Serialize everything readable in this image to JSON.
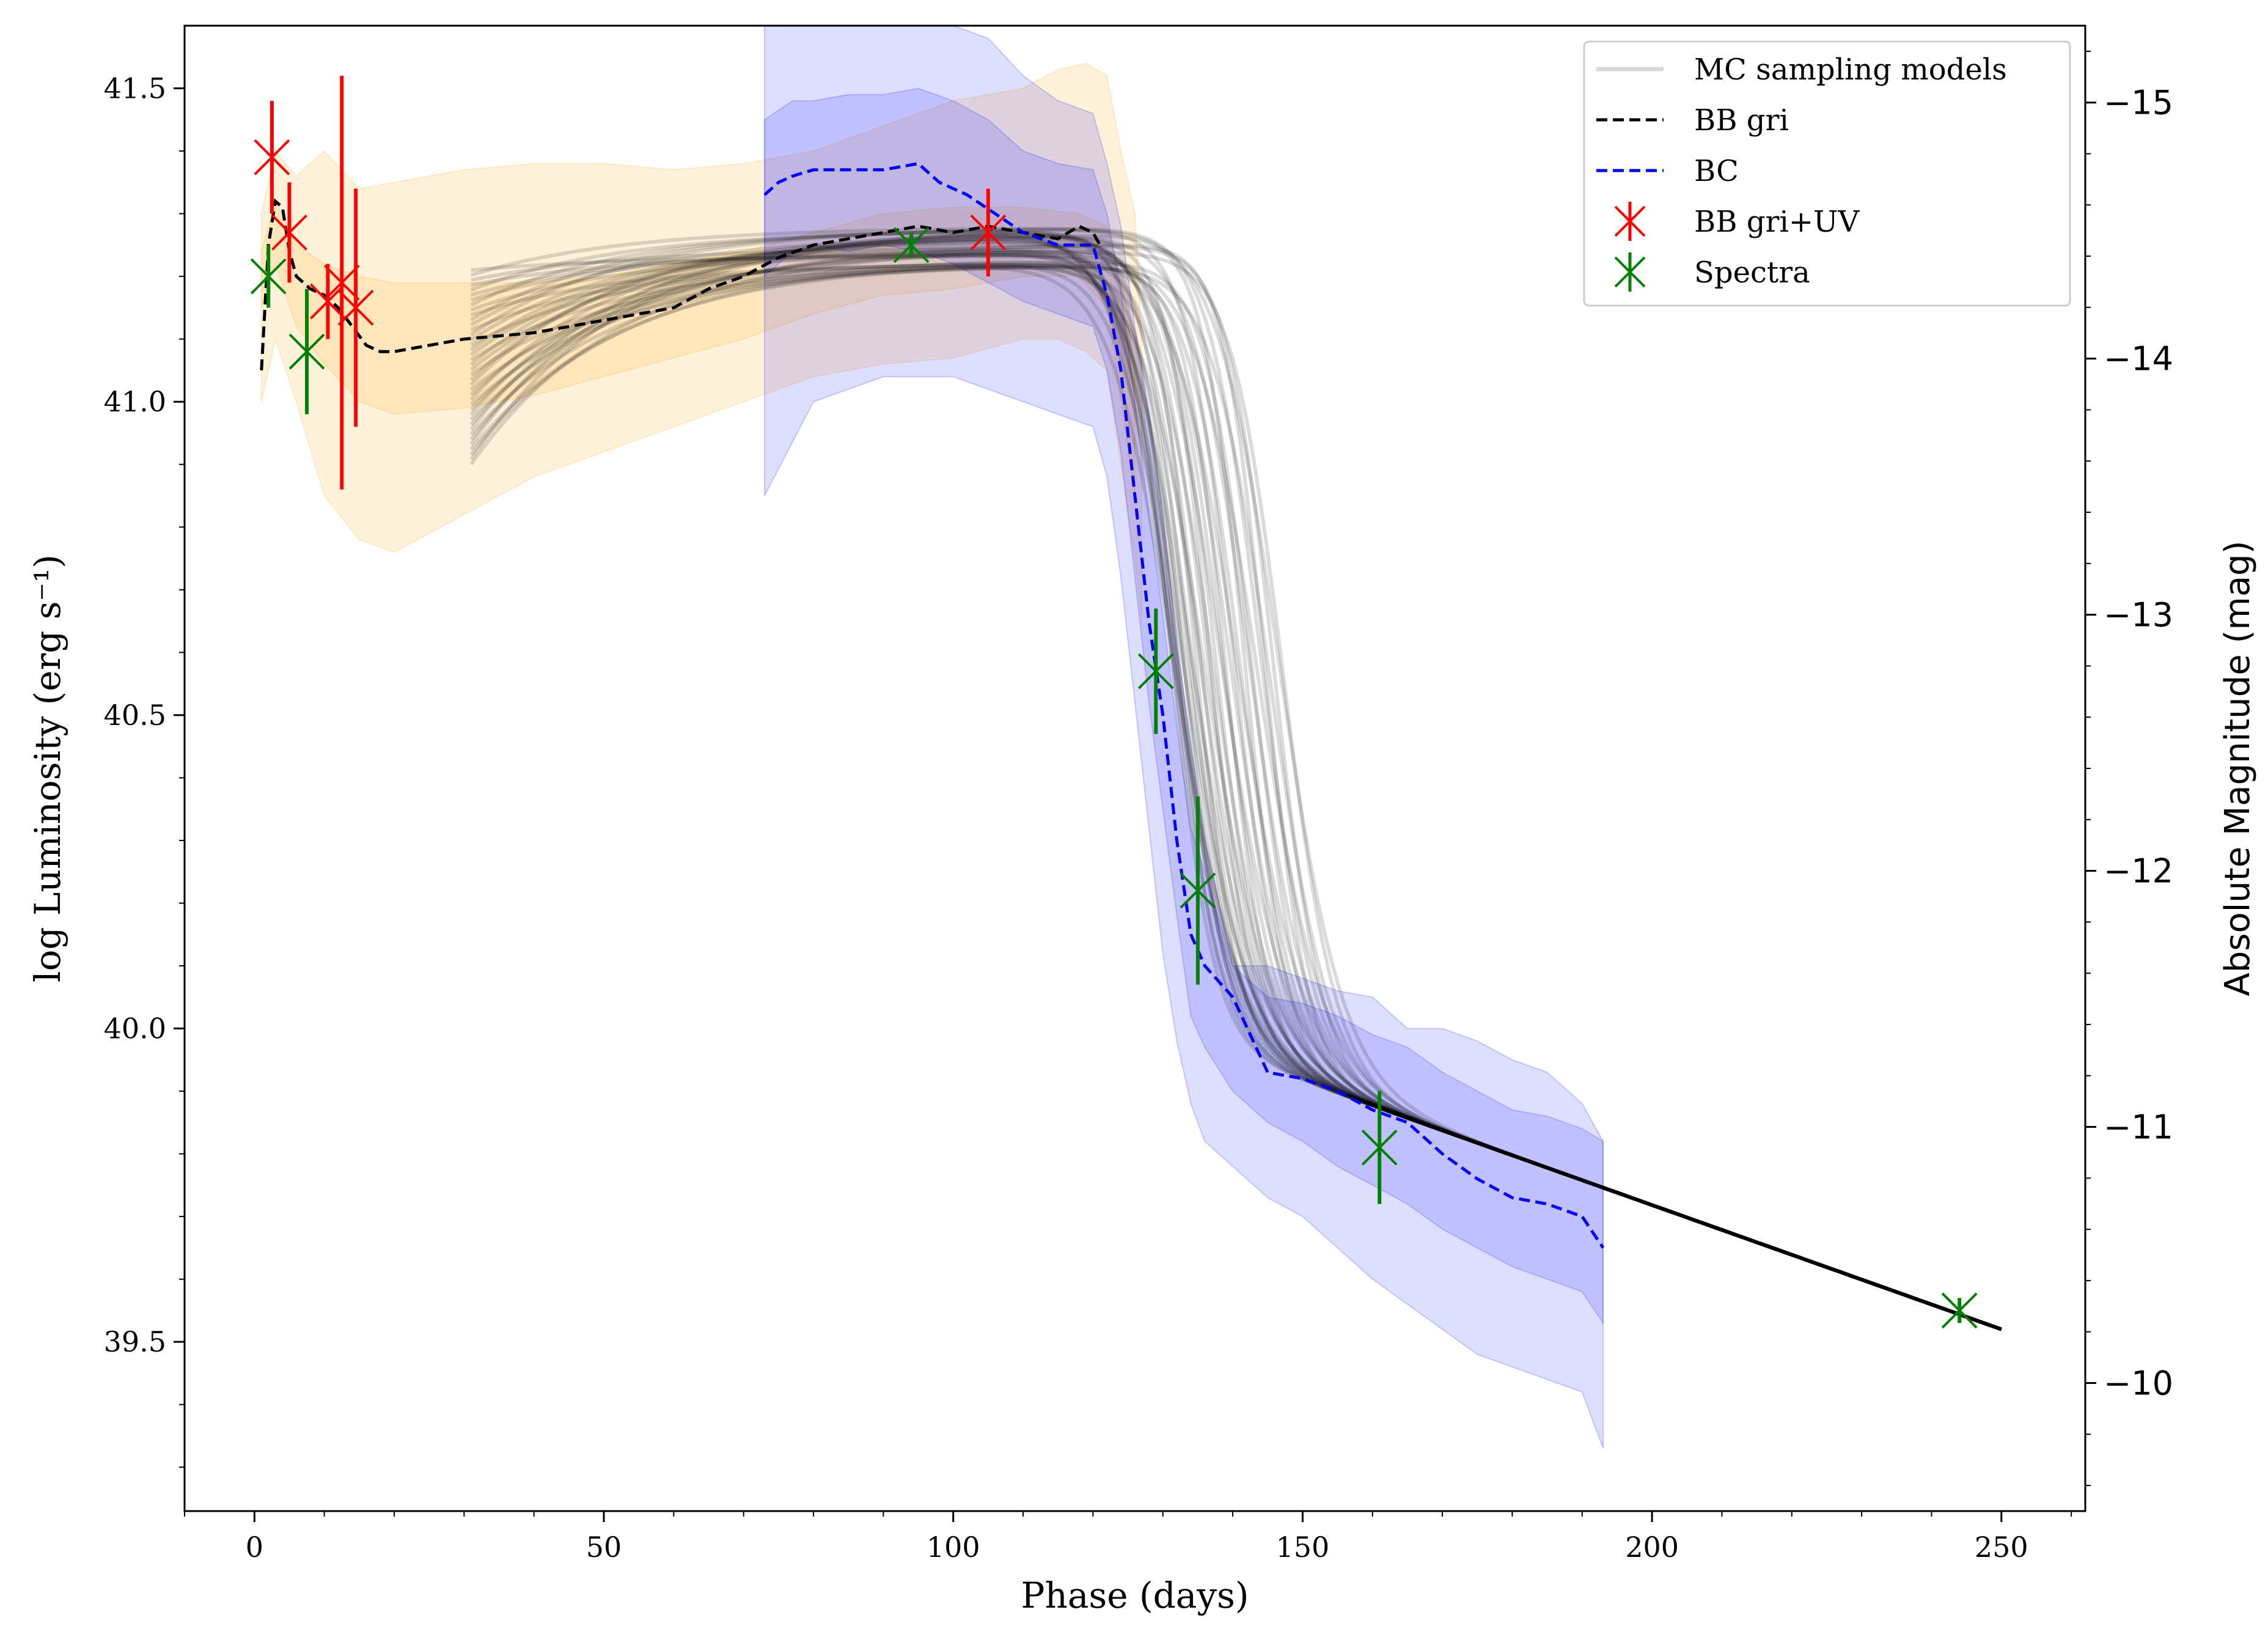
{
  "chart_data": {
    "type": "line",
    "xlabel": "Phase (days)",
    "ylabel": "log Luminosity (erg s⁻¹)",
    "ylabel_right": "Absolute Magnitude (mag)",
    "xlim": [
      -10,
      262
    ],
    "ylim": [
      39.23,
      41.6
    ],
    "ylim_right": [
      -9.5,
      -15.3
    ],
    "x_ticks": [
      0,
      50,
      100,
      150,
      200,
      250
    ],
    "y_ticks": [
      39.5,
      40.0,
      40.5,
      41.0,
      41.5
    ],
    "y_ticks_right": [
      -10,
      -11,
      -12,
      -13,
      -14,
      -15
    ],
    "x_tick_labels": [
      "0",
      "50",
      "100",
      "150",
      "200",
      "250"
    ],
    "y_tick_labels": [
      "39.5",
      "40.0",
      "40.5",
      "41.0",
      "41.5"
    ],
    "y_tick_labels_right": [
      "−10",
      "−11",
      "−12",
      "−13",
      "−14",
      "−15"
    ],
    "grid": false,
    "legend_position": "top-right",
    "legend": [
      "MC sampling models",
      "BB gri",
      "BC",
      "BB gri+UV",
      "Spectra"
    ],
    "colors": {
      "mc": "#000000",
      "bb_gri": "#000000",
      "bc": "#0000ff",
      "bb_uv": "#ff0000",
      "spectra": "#008000",
      "band_orange": "#ffa500",
      "band_blue": "#0000ff"
    },
    "series": [
      {
        "name": "BB gri",
        "style": "dashed",
        "x": [
          1,
          2,
          3,
          4,
          5,
          6,
          8,
          10,
          12,
          14,
          16,
          18,
          20,
          30,
          40,
          50,
          60,
          65,
          70,
          75,
          80,
          85,
          90,
          95,
          100,
          105,
          110,
          115,
          118,
          120,
          121
        ],
        "y": [
          41.05,
          41.25,
          41.32,
          41.31,
          41.24,
          41.2,
          41.18,
          41.17,
          41.15,
          41.12,
          41.09,
          41.08,
          41.08,
          41.1,
          41.11,
          41.13,
          41.15,
          41.18,
          41.2,
          41.23,
          41.25,
          41.26,
          41.27,
          41.28,
          41.27,
          41.28,
          41.27,
          41.26,
          41.28,
          41.27,
          41.25
        ]
      },
      {
        "name": "BC",
        "style": "dashed",
        "x": [
          73,
          75,
          77,
          80,
          83,
          86,
          90,
          95,
          98,
          102,
          106,
          110,
          115,
          120,
          122,
          124,
          126,
          128,
          130,
          132,
          134,
          136,
          140,
          145,
          150,
          155,
          160,
          165,
          170,
          175,
          180,
          185,
          190,
          193
        ],
        "y": [
          41.33,
          41.35,
          41.36,
          41.37,
          41.37,
          41.37,
          41.37,
          41.38,
          41.35,
          41.33,
          41.3,
          41.27,
          41.25,
          41.25,
          41.17,
          41.05,
          40.85,
          40.65,
          40.5,
          40.3,
          40.15,
          40.1,
          40.05,
          39.93,
          39.92,
          39.9,
          39.87,
          39.85,
          39.8,
          39.76,
          39.73,
          39.72,
          39.7,
          39.65
        ]
      },
      {
        "name": "BB gri+UV",
        "x": [
          2.5,
          5,
          10.5,
          12.5,
          14.5,
          105
        ],
        "y": [
          41.39,
          41.27,
          41.16,
          41.19,
          41.15,
          41.27
        ],
        "yerr": [
          0.09,
          0.08,
          0.06,
          0.33,
          0.19,
          0.07
        ]
      },
      {
        "name": "Spectra",
        "x": [
          2,
          7.5,
          94,
          129,
          135,
          161,
          244
        ],
        "y": [
          41.2,
          41.08,
          41.25,
          40.57,
          40.22,
          39.81,
          39.55
        ],
        "yerr": [
          0.05,
          0.1,
          0.02,
          0.1,
          0.15,
          0.09,
          0.02
        ]
      }
    ],
    "bands": [
      {
        "name": "BB gri uncertainty (inner)",
        "color": "orange",
        "x": [
          1,
          3,
          6,
          10,
          15,
          20,
          30,
          40,
          50,
          60,
          70,
          80,
          90,
          100,
          110,
          118,
          122,
          124,
          126
        ],
        "upper": [
          41.24,
          41.32,
          41.25,
          41.22,
          41.2,
          41.19,
          41.19,
          41.19,
          41.2,
          41.22,
          41.24,
          41.27,
          41.3,
          41.31,
          41.31,
          41.3,
          41.28,
          41.2,
          41.05
        ],
        "lower": [
          41.15,
          41.22,
          41.12,
          41.06,
          41.0,
          40.98,
          40.99,
          41.01,
          41.04,
          41.07,
          41.1,
          41.14,
          41.17,
          41.18,
          41.2,
          41.2,
          41.15,
          41.0,
          40.85
        ]
      },
      {
        "name": "BB gri uncertainty (outer)",
        "color": "orange",
        "x": [
          1,
          3,
          6,
          10,
          15,
          20,
          30,
          40,
          50,
          60,
          70,
          80,
          90,
          100,
          110,
          115,
          119,
          122,
          124,
          126,
          127
        ],
        "upper": [
          41.3,
          41.4,
          41.36,
          41.4,
          41.34,
          41.35,
          41.37,
          41.38,
          41.38,
          41.37,
          41.38,
          41.4,
          41.44,
          41.48,
          41.5,
          41.53,
          41.54,
          41.52,
          41.4,
          41.3,
          41.1
        ],
        "lower": [
          41.0,
          41.1,
          41.0,
          40.85,
          40.78,
          40.76,
          40.82,
          40.88,
          40.92,
          40.96,
          41.0,
          41.04,
          41.06,
          41.07,
          41.1,
          41.1,
          41.08,
          41.05,
          40.9,
          40.75,
          40.65
        ]
      },
      {
        "name": "BC uncertainty (inner)",
        "color": "blue",
        "x": [
          73,
          77,
          80,
          85,
          90,
          95,
          100,
          105,
          110,
          115,
          120,
          122,
          124,
          126,
          128,
          130,
          132,
          134,
          136,
          140,
          145,
          150,
          155,
          160,
          165,
          170,
          175,
          180,
          185,
          190,
          193
        ],
        "upper": [
          41.45,
          41.48,
          41.48,
          41.49,
          41.49,
          41.5,
          41.48,
          41.45,
          41.4,
          41.38,
          41.37,
          41.3,
          41.18,
          41.0,
          40.82,
          40.66,
          40.48,
          40.32,
          40.25,
          40.1,
          40.05,
          40.04,
          40.02,
          39.99,
          39.97,
          39.93,
          39.9,
          39.87,
          39.86,
          39.84,
          39.82
        ],
        "lower": [
          41.2,
          41.24,
          41.25,
          41.24,
          41.25,
          41.24,
          41.22,
          41.19,
          41.16,
          41.14,
          41.12,
          41.05,
          40.92,
          40.72,
          40.52,
          40.35,
          40.18,
          40.02,
          39.97,
          39.9,
          39.85,
          39.82,
          39.78,
          39.75,
          39.72,
          39.68,
          39.65,
          39.62,
          39.6,
          39.58,
          39.53
        ]
      },
      {
        "name": "BC uncertainty (outer)",
        "color": "blue",
        "x": [
          73,
          80,
          90,
          100,
          105,
          110,
          115,
          120,
          122,
          124,
          126,
          128,
          130,
          132,
          134,
          136,
          140,
          145,
          150,
          155,
          160,
          165,
          170,
          175,
          180,
          185,
          190,
          193
        ],
        "upper": [
          41.6,
          41.6,
          41.6,
          41.6,
          41.58,
          41.52,
          41.48,
          41.46,
          41.38,
          41.28,
          41.12,
          40.98,
          40.82,
          40.62,
          40.45,
          40.3,
          40.1,
          40.1,
          40.08,
          40.06,
          40.05,
          40.0,
          40.0,
          39.98,
          39.95,
          39.93,
          39.88,
          39.82
        ],
        "lower": [
          40.85,
          41.0,
          41.04,
          41.04,
          41.02,
          41.0,
          40.98,
          40.96,
          40.88,
          40.72,
          40.52,
          40.32,
          40.12,
          39.98,
          39.88,
          39.82,
          39.78,
          39.73,
          39.7,
          39.65,
          39.6,
          39.56,
          39.52,
          39.48,
          39.46,
          39.44,
          39.42,
          39.33
        ]
      }
    ],
    "mc_models": {
      "count": 40,
      "x_start": 31,
      "start_range": [
        40.9,
        41.21
      ],
      "plateau": 41.25,
      "drop_phase_range": [
        131,
        147
      ],
      "tail_start": 39.98,
      "tail_end": 39.52,
      "tail_end_phase": 250
    }
  }
}
